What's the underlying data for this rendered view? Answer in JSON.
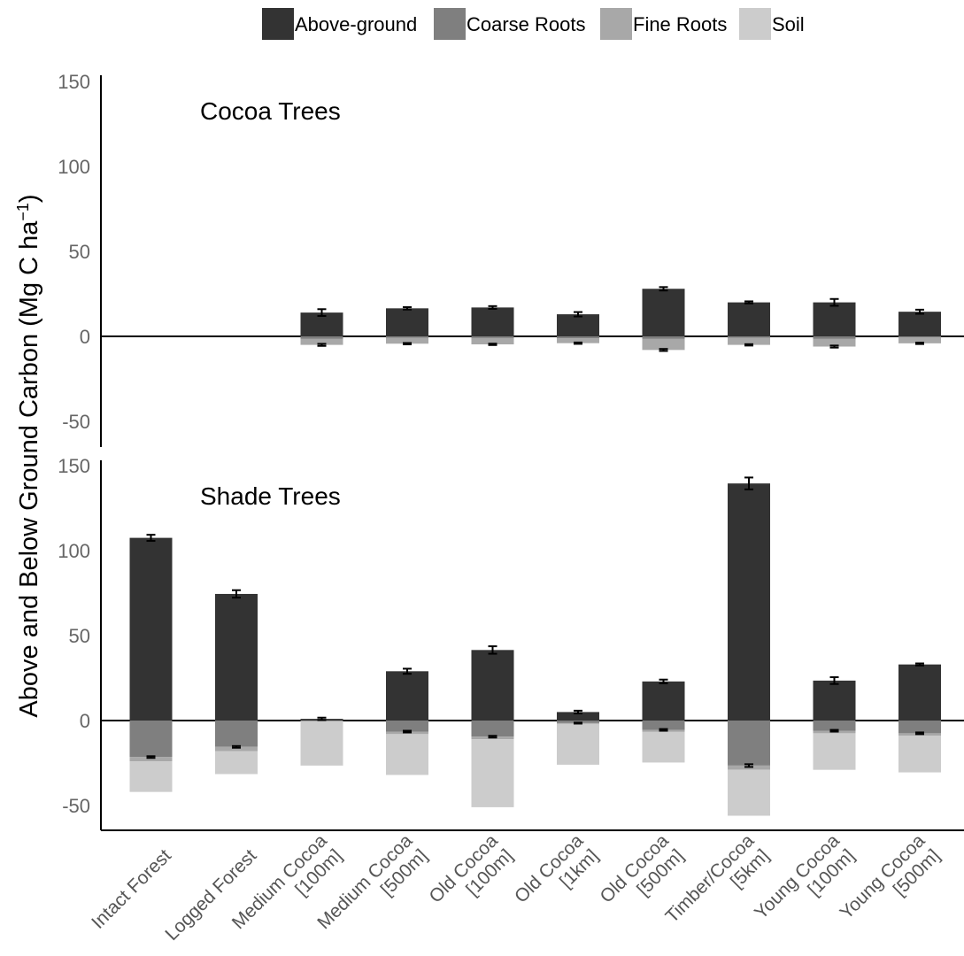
{
  "chart_data": {
    "type": "bar",
    "stacked": true,
    "ylabel": "Above and Below Ground Carbon (Mg C ha",
    "ylabel_superscript": "−1",
    "ylabel_close": ")",
    "ylim": [
      -60,
      150
    ],
    "yticks": [
      "150",
      "100",
      "50",
      "0",
      "-50"
    ],
    "legend_position": "top",
    "legend": [
      {
        "name": "Above-ground",
        "color": "#333333"
      },
      {
        "name": "Coarse Roots",
        "color": "#7f7f7f"
      },
      {
        "name": "Fine Roots",
        "color": "#a8a8a8"
      },
      {
        "name": "Soil",
        "color": "#cccccc"
      }
    ],
    "categories": [
      [
        "Intact Forest"
      ],
      [
        "Logged Forest"
      ],
      [
        "Medium Cocoa",
        "[100m]"
      ],
      [
        "Medium Cocoa",
        "[500m]"
      ],
      [
        "Old Cocoa",
        "[100m]"
      ],
      [
        "Old Cocoa",
        "[1km]"
      ],
      [
        "Old Cocoa",
        "[500m]"
      ],
      [
        "Timber/Cocoa",
        "[5km]"
      ],
      [
        "Young Cocoa",
        "[100m]"
      ],
      [
        "Young Cocoa",
        "[500m]"
      ]
    ],
    "panels": [
      {
        "title": "Cocoa Trees",
        "series": [
          {
            "name": "Above-ground",
            "values": [
              null,
              null,
              14,
              16.5,
              17,
              13,
              28,
              20,
              20,
              14.5
            ],
            "errors": [
              null,
              null,
              2,
              0.7,
              0.8,
              1.3,
              1,
              0.6,
              2,
              1.2
            ]
          },
          {
            "name": "Coarse Roots",
            "values": [
              null,
              null,
              -1.5,
              -0.8,
              -1,
              -1.2,
              -1.5,
              -0.8,
              -1.5,
              -0.7
            ]
          },
          {
            "name": "Fine Roots",
            "values": [
              null,
              null,
              -3.5,
              -3.5,
              -3.7,
              -2.8,
              -6.5,
              -4.2,
              -4.5,
              -3.4
            ],
            "errors": [
              null,
              null,
              0.6,
              0.4,
              0.4,
              0.4,
              0.6,
              0.4,
              0.6,
              0.4
            ]
          },
          {
            "name": "Soil",
            "values": [
              null,
              null,
              null,
              null,
              null,
              null,
              null,
              null,
              null,
              null
            ]
          }
        ]
      },
      {
        "title": "Shade Trees",
        "series": [
          {
            "name": "Above-ground",
            "values": [
              107.5,
              74.5,
              1,
              29,
              41.5,
              5,
              23,
              139.5,
              23.5,
              33
            ],
            "errors": [
              1.8,
              2.2,
              0.7,
              1.5,
              2.2,
              0.8,
              1.1,
              3.5,
              2,
              0.6
            ]
          },
          {
            "name": "Coarse Roots",
            "values": [
              -21.5,
              -15.5,
              0,
              -6.5,
              -9.5,
              -1.5,
              -5.5,
              -26.5,
              -6,
              -7.5
            ],
            "errors": [
              0.5,
              0.5,
              0,
              0.5,
              0.5,
              0.3,
              0.5,
              0.8,
              0.5,
              0.5
            ]
          },
          {
            "name": "Fine Roots",
            "values": [
              -2.5,
              -2.5,
              -0.5,
              -1.5,
              -1.5,
              -0.5,
              -1.2,
              -2.5,
              -1.5,
              -1.5
            ]
          },
          {
            "name": "Soil",
            "values": [
              -18,
              -13.5,
              -26,
              -24,
              -40,
              -24,
              -18,
              -27,
              -21.5,
              -21.5
            ]
          }
        ]
      }
    ]
  }
}
